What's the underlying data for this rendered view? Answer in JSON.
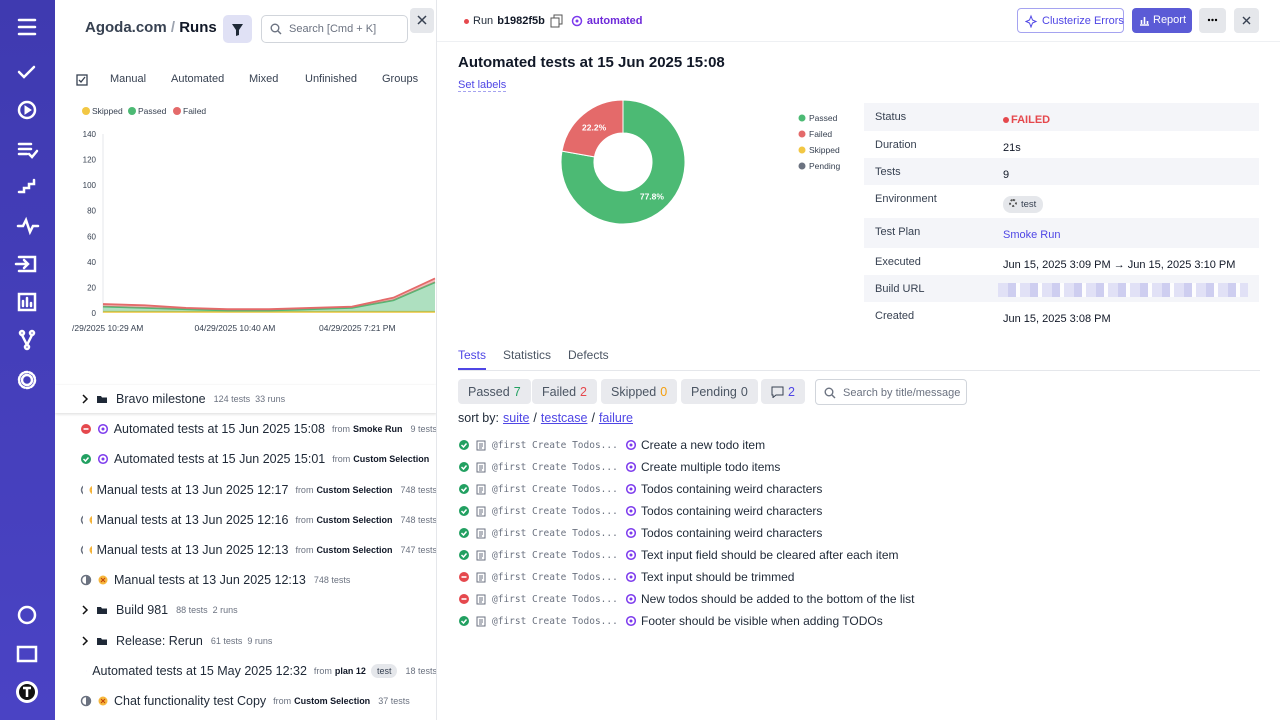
{
  "header": {
    "brand": "Agoda.com",
    "separator": "/",
    "section": "Runs",
    "search_placeholder": "Search [Cmd + K]"
  },
  "run_type_tabs": [
    "Manual",
    "Automated",
    "Mixed",
    "Unfinished",
    "Groups"
  ],
  "chart_data": [
    {
      "type": "area",
      "categories": [
        "/29/2025 10:29 AM",
        null,
        null,
        "04/29/2025 10:40 AM",
        null,
        null,
        "04/29/2025 7:21 PM",
        null,
        null
      ],
      "series": [
        {
          "name": "Skipped",
          "color": "#f2c744",
          "values": [
            1,
            1,
            1,
            1,
            1,
            1,
            1,
            1,
            1
          ]
        },
        {
          "name": "Passed",
          "color": "#4cba74",
          "values": [
            4,
            3,
            2,
            1,
            1,
            2,
            3,
            9,
            23
          ]
        },
        {
          "name": "Failed",
          "color": "#e46a6a",
          "values": [
            2,
            2,
            1,
            1,
            1,
            1,
            1,
            2,
            3
          ]
        }
      ],
      "ylim": [
        0,
        140
      ],
      "yticks": [
        0,
        20,
        40,
        60,
        80,
        100,
        120,
        140
      ],
      "stacked": true,
      "legend": "top-left"
    },
    {
      "type": "donut",
      "categories": [
        "Passed",
        "Failed",
        "Skipped",
        "Pending"
      ],
      "values": [
        77.8,
        22.2,
        0,
        0
      ],
      "value_labels": [
        "77.8%",
        "22.2%",
        null,
        null
      ],
      "colors": [
        "#4cba74",
        "#e46a6a",
        "#f2c744",
        "#6b7280"
      ],
      "legend": "right"
    }
  ],
  "runs_list": {
    "from_label": "from",
    "items": [
      {
        "kind": "group",
        "name": "Bravo milestone",
        "tests": "124 tests",
        "runs": "33 runs"
      },
      {
        "kind": "run",
        "status": "failed",
        "automated": true,
        "name": "Automated tests at 15 Jun 2025 15:08",
        "plan": "Smoke Run",
        "tests": "9 tests"
      },
      {
        "kind": "run",
        "status": "passed",
        "automated": true,
        "name": "Automated tests at 15 Jun 2025 15:01",
        "plan": "Custom Selection"
      },
      {
        "kind": "run",
        "status": "manual",
        "automated": false,
        "name": "Manual tests at 13 Jun 2025 12:17",
        "plan": "Custom Selection",
        "tests": "748 tests"
      },
      {
        "kind": "run",
        "status": "manual",
        "automated": false,
        "name": "Manual tests at 13 Jun 2025 12:16",
        "plan": "Custom Selection",
        "tests": "748 tests"
      },
      {
        "kind": "run",
        "status": "manual",
        "automated": false,
        "name": "Manual tests at 13 Jun 2025 12:13",
        "plan": "Custom Selection",
        "tests": "747 tests"
      },
      {
        "kind": "run",
        "status": "manual",
        "automated": false,
        "name": "Manual tests at 13 Jun 2025 12:13",
        "tests": "748 tests"
      },
      {
        "kind": "group",
        "name": "Build 981",
        "tests": "88 tests",
        "runs": "2 runs"
      },
      {
        "kind": "group",
        "name": "Release: Rerun",
        "tests": "61 tests",
        "runs": "9 runs"
      },
      {
        "kind": "run",
        "status": "failed",
        "automated": true,
        "name": "Automated tests at 15 May 2025 12:32",
        "plan": "plan 12",
        "tag": "test",
        "tests": "18 tests"
      },
      {
        "kind": "run",
        "status": "manual",
        "automated": false,
        "name": "Chat functionality test Copy",
        "plan": "Custom Selection",
        "tests": "37 tests"
      }
    ]
  },
  "run": {
    "label": "Run",
    "id": "b1982f5b",
    "tag": "automated",
    "actions": [
      "Clusterize Errors",
      "Report"
    ],
    "title": "Automated tests at 15 Jun 2025 15:08",
    "set_labels": "Set labels",
    "details": [
      {
        "key": "Status",
        "value": "FAILED"
      },
      {
        "key": "Duration",
        "value": "21s"
      },
      {
        "key": "Tests",
        "value": "9"
      },
      {
        "key": "Environment",
        "value": "test"
      },
      {
        "key": "Test Plan",
        "value": "Smoke Run"
      },
      {
        "key": "Executed",
        "value": "Jun 15, 2025 3:09 PM → Jun 15, 2025 3:10 PM"
      },
      {
        "key": "Build URL"
      },
      {
        "key": "Created",
        "value": "Jun 15, 2025 3:08 PM"
      }
    ],
    "tabs": [
      "Tests",
      "Statistics",
      "Defects"
    ],
    "filters": [
      {
        "label": "Passed",
        "count": 7
      },
      {
        "label": "Failed",
        "count": 2
      },
      {
        "label": "Skipped",
        "count": 0
      },
      {
        "label": "Pending",
        "count": 0
      },
      {
        "count": 2
      }
    ],
    "search_placeholder": "Search by title/message",
    "sort": {
      "label": "sort by:",
      "options": [
        "suite",
        "testcase",
        "failure"
      ],
      "separator": "/"
    },
    "tests": [
      {
        "status": "passed",
        "suite": "@first Create Todos...",
        "title": "Create a new todo item"
      },
      {
        "status": "passed",
        "suite": "@first Create Todos...",
        "title": "Create multiple todo items"
      },
      {
        "status": "passed",
        "suite": "@first Create Todos...",
        "title": "Todos containing weird characters"
      },
      {
        "status": "passed",
        "suite": "@first Create Todos...",
        "title": "Todos containing weird characters"
      },
      {
        "status": "passed",
        "suite": "@first Create Todos...",
        "title": "Todos containing weird characters"
      },
      {
        "status": "passed",
        "suite": "@first Create Todos...",
        "title": "Text input field should be cleared after each item"
      },
      {
        "status": "failed",
        "suite": "@first Create Todos...",
        "title": "Text input should be trimmed"
      },
      {
        "status": "failed",
        "suite": "@first Create Todos...",
        "title": "New todos should be added to the bottom of the list"
      },
      {
        "status": "passed",
        "suite": "@first Create Todos...",
        "title": "Footer should be visible when adding TODOs"
      }
    ]
  }
}
